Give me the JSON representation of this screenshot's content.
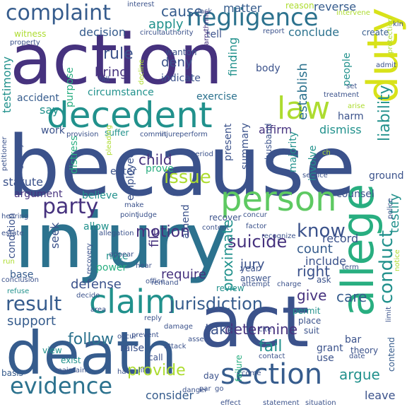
{
  "palette": {
    "indigo": "#3b528b",
    "purple": "#46327e",
    "slate": "#365c8d",
    "blue": "#2c728e",
    "teal": "#21918c",
    "sea": "#28ae80",
    "green": "#5ec962",
    "lime": "#addc30",
    "yellow": "#d8e219",
    "darkpurple": "#440154"
  },
  "words": [
    {
      "text": "because",
      "color": "indigo"
    },
    {
      "text": "action",
      "color": "purple"
    },
    {
      "text": "injury",
      "color": "blue"
    },
    {
      "text": "death",
      "color": "slate"
    },
    {
      "text": "act",
      "color": "indigo"
    },
    {
      "text": "decedent",
      "color": "teal"
    },
    {
      "text": "allege",
      "color": "sea"
    },
    {
      "text": "person",
      "color": "green"
    },
    {
      "text": "duty",
      "color": "yellow"
    },
    {
      "text": "complaint",
      "color": "slate"
    },
    {
      "text": "negligence",
      "color": "blue"
    },
    {
      "text": "law",
      "color": "lime"
    },
    {
      "text": "claim",
      "color": "teal"
    },
    {
      "text": "section",
      "color": "slate"
    },
    {
      "text": "evidence",
      "color": "blue"
    },
    {
      "text": "result",
      "color": "slate"
    },
    {
      "text": "conduct",
      "color": "teal"
    },
    {
      "text": "party",
      "color": "purple"
    },
    {
      "text": "issue",
      "color": "lime"
    },
    {
      "text": "know",
      "color": "indigo"
    },
    {
      "text": "liability",
      "color": "teal"
    },
    {
      "text": "jurisdiction",
      "color": "slate"
    },
    {
      "text": "suicide",
      "color": "purple"
    },
    {
      "text": "motion",
      "color": "purple"
    },
    {
      "text": "testify",
      "color": "teal"
    },
    {
      "text": "proximate",
      "color": "teal"
    },
    {
      "text": "argue",
      "color": "teal"
    },
    {
      "text": "follow",
      "color": "blue"
    },
    {
      "text": "provide",
      "color": "lime"
    },
    {
      "text": "fail",
      "color": "teal"
    },
    {
      "text": "cause",
      "color": "slate"
    },
    {
      "text": "apply",
      "color": "teal"
    },
    {
      "text": "rule",
      "color": "indigo"
    },
    {
      "text": "child",
      "color": "purple"
    },
    {
      "text": "right",
      "color": "indigo"
    },
    {
      "text": "determine",
      "color": "purple"
    },
    {
      "text": "take",
      "color": "indigo"
    },
    {
      "text": "support",
      "color": "slate"
    },
    {
      "text": "care",
      "color": "slate"
    },
    {
      "text": "give",
      "color": "purple"
    },
    {
      "text": "defense",
      "color": "indigo"
    },
    {
      "text": "require",
      "color": "purple"
    },
    {
      "text": "jury",
      "color": "indigo"
    },
    {
      "text": "count",
      "color": "slate"
    },
    {
      "text": "record",
      "color": "indigo"
    },
    {
      "text": "include",
      "color": "indigo"
    },
    {
      "text": "establish",
      "color": "blue"
    },
    {
      "text": "deny",
      "color": "indigo"
    },
    {
      "text": "bring",
      "color": "purple"
    },
    {
      "text": "dismiss",
      "color": "teal"
    },
    {
      "text": "affirm",
      "color": "purple"
    },
    {
      "text": "finding",
      "color": "teal"
    },
    {
      "text": "conclude",
      "color": "blue"
    },
    {
      "text": "reverse",
      "color": "slate"
    },
    {
      "text": "matter",
      "color": "slate"
    },
    {
      "text": "decision",
      "color": "slate"
    },
    {
      "text": "testimony",
      "color": "teal"
    },
    {
      "text": "purpose",
      "color": "sea"
    },
    {
      "text": "say",
      "color": "teal"
    },
    {
      "text": "work",
      "color": "indigo"
    },
    {
      "text": "exercise",
      "color": "blue"
    },
    {
      "text": "indicate",
      "color": "indigo"
    },
    {
      "text": "circumstance",
      "color": "teal"
    },
    {
      "text": "accident",
      "color": "slate"
    },
    {
      "text": "argument",
      "color": "purple"
    },
    {
      "text": "believe",
      "color": "teal"
    },
    {
      "text": "enter",
      "color": "indigo"
    },
    {
      "text": "prove",
      "color": "sea"
    },
    {
      "text": "seek",
      "color": "indigo"
    },
    {
      "text": "note",
      "color": "teal"
    },
    {
      "text": "power",
      "color": "sea"
    },
    {
      "text": "file",
      "color": "purple"
    },
    {
      "text": "allow",
      "color": "teal"
    },
    {
      "text": "amend",
      "color": "indigo"
    },
    {
      "text": "present",
      "color": "indigo"
    },
    {
      "text": "summary",
      "color": "indigo"
    },
    {
      "text": "majority",
      "color": "teal"
    },
    {
      "text": "involve",
      "color": "teal"
    },
    {
      "text": "counsel",
      "color": "indigo"
    },
    {
      "text": "ground",
      "color": "indigo"
    },
    {
      "text": "grant",
      "color": "indigo"
    },
    {
      "text": "use",
      "color": "indigo"
    },
    {
      "text": "bar",
      "color": "indigo"
    },
    {
      "text": "leave",
      "color": "indigo"
    },
    {
      "text": "consider",
      "color": "slate"
    },
    {
      "text": "raise",
      "color": "indigo"
    },
    {
      "text": "harm",
      "color": "indigo"
    },
    {
      "text": "people",
      "color": "teal"
    },
    {
      "text": "body",
      "color": "indigo"
    },
    {
      "text": "tell",
      "color": "indigo"
    },
    {
      "text": "wanton",
      "color": "indigo"
    },
    {
      "text": "distress",
      "color": "sea"
    },
    {
      "text": "employee",
      "color": "indigo"
    },
    {
      "text": "suffer",
      "color": "teal"
    },
    {
      "text": "condition",
      "color": "indigo"
    },
    {
      "text": "base",
      "color": "slate"
    },
    {
      "text": "basis",
      "color": "slate"
    },
    {
      "text": "view",
      "color": "teal"
    },
    {
      "text": "exist",
      "color": "teal"
    },
    {
      "text": "statute",
      "color": "indigo"
    },
    {
      "text": "witness",
      "color": "lime"
    },
    {
      "text": "reason",
      "color": "lime"
    },
    {
      "text": "create",
      "color": "slate"
    },
    {
      "text": "husband",
      "color": "indigo"
    },
    {
      "text": "answer",
      "color": "indigo"
    },
    {
      "text": "recover",
      "color": "indigo"
    },
    {
      "text": "review",
      "color": "teal"
    },
    {
      "text": "year",
      "color": "indigo"
    },
    {
      "text": "ask",
      "color": "indigo"
    },
    {
      "text": "permit",
      "color": "teal"
    },
    {
      "text": "place",
      "color": "indigo"
    },
    {
      "text": "suit",
      "color": "indigo"
    },
    {
      "text": "contend",
      "color": "slate"
    },
    {
      "text": "failure",
      "color": "sea"
    },
    {
      "text": "theory",
      "color": "indigo"
    },
    {
      "text": "day",
      "color": "indigo"
    },
    {
      "text": "call",
      "color": "indigo"
    },
    {
      "text": "provision",
      "color": "indigo"
    },
    {
      "text": "arrythmia",
      "color": "purple"
    },
    {
      "text": "circuit",
      "color": "indigo"
    },
    {
      "text": "authority",
      "color": "indigo"
    },
    {
      "text": "interest",
      "color": "indigo"
    },
    {
      "text": "property",
      "color": "indigo"
    },
    {
      "text": "commit",
      "color": "indigo"
    },
    {
      "text": "injure",
      "color": "indigo"
    },
    {
      "text": "perform",
      "color": "indigo"
    },
    {
      "text": "period",
      "color": "indigo"
    },
    {
      "text": "hearing",
      "color": "indigo"
    },
    {
      "text": "estate",
      "color": "indigo"
    },
    {
      "text": "judge",
      "color": "indigo"
    },
    {
      "text": "allegation",
      "color": "indigo"
    },
    {
      "text": "factor",
      "color": "indigo"
    },
    {
      "text": "recognize",
      "color": "indigo"
    },
    {
      "text": "service",
      "color": "indigo"
    },
    {
      "text": "police",
      "color": "indigo"
    },
    {
      "text": "recovery",
      "color": "indigo"
    },
    {
      "text": "appear",
      "color": "indigo"
    },
    {
      "text": "hear",
      "color": "indigo"
    },
    {
      "text": "office",
      "color": "indigo"
    },
    {
      "text": "charge",
      "color": "indigo"
    },
    {
      "text": "conclusion",
      "color": "indigo"
    },
    {
      "text": "refuse",
      "color": "teal"
    },
    {
      "text": "decide",
      "color": "indigo"
    },
    {
      "text": "area",
      "color": "indigo"
    },
    {
      "text": "damage",
      "color": "indigo"
    },
    {
      "text": "prevent",
      "color": "indigo"
    },
    {
      "text": "occur",
      "color": "indigo"
    },
    {
      "text": "life",
      "color": "indigo"
    },
    {
      "text": "attack",
      "color": "indigo"
    },
    {
      "text": "danger",
      "color": "indigo"
    },
    {
      "text": "contact",
      "color": "indigo"
    },
    {
      "text": "statement",
      "color": "indigo"
    },
    {
      "text": "situation",
      "color": "indigo"
    },
    {
      "text": "effect",
      "color": "indigo"
    },
    {
      "text": "come",
      "color": "indigo"
    },
    {
      "text": "have",
      "color": "indigo"
    },
    {
      "text": "maintain",
      "color": "indigo"
    },
    {
      "text": "go",
      "color": "indigo"
    },
    {
      "text": "par",
      "color": "indigo"
    },
    {
      "text": "lack",
      "color": "indigo"
    },
    {
      "text": "intervene",
      "color": "lime"
    },
    {
      "text": "report",
      "color": "indigo"
    },
    {
      "text": "treatment",
      "color": "indigo"
    },
    {
      "text": "protection",
      "color": "lime"
    },
    {
      "text": "admit",
      "color": "indigo"
    },
    {
      "text": "set",
      "color": "indigo"
    },
    {
      "text": "petitioner",
      "color": "indigo"
    },
    {
      "text": "pregnancy",
      "color": "indigo"
    },
    {
      "text": "term",
      "color": "indigo"
    },
    {
      "text": "limit",
      "color": "indigo"
    },
    {
      "text": "date",
      "color": "indigo"
    },
    {
      "text": "notice",
      "color": "lime"
    },
    {
      "text": "concur",
      "color": "indigo"
    },
    {
      "text": "attempt",
      "color": "indigo"
    },
    {
      "text": "make",
      "color": "indigo"
    },
    {
      "text": "point",
      "color": "indigo"
    },
    {
      "text": "content",
      "color": "indigo"
    },
    {
      "text": "kin",
      "color": "indigo"
    },
    {
      "text": "fall",
      "color": "indigo"
    },
    {
      "text": "decline",
      "color": "lime"
    },
    {
      "text": "pleading",
      "color": "lime"
    },
    {
      "text": "assert",
      "color": "indigo"
    },
    {
      "text": "reply",
      "color": "indigo"
    },
    {
      "text": "cite",
      "color": "indigo"
    },
    {
      "text": "remand",
      "color": "indigo"
    },
    {
      "text": "run",
      "color": "lime"
    },
    {
      "text": "arise",
      "color": "lime"
    },
    {
      "text": "ch",
      "color": "lime"
    }
  ]
}
